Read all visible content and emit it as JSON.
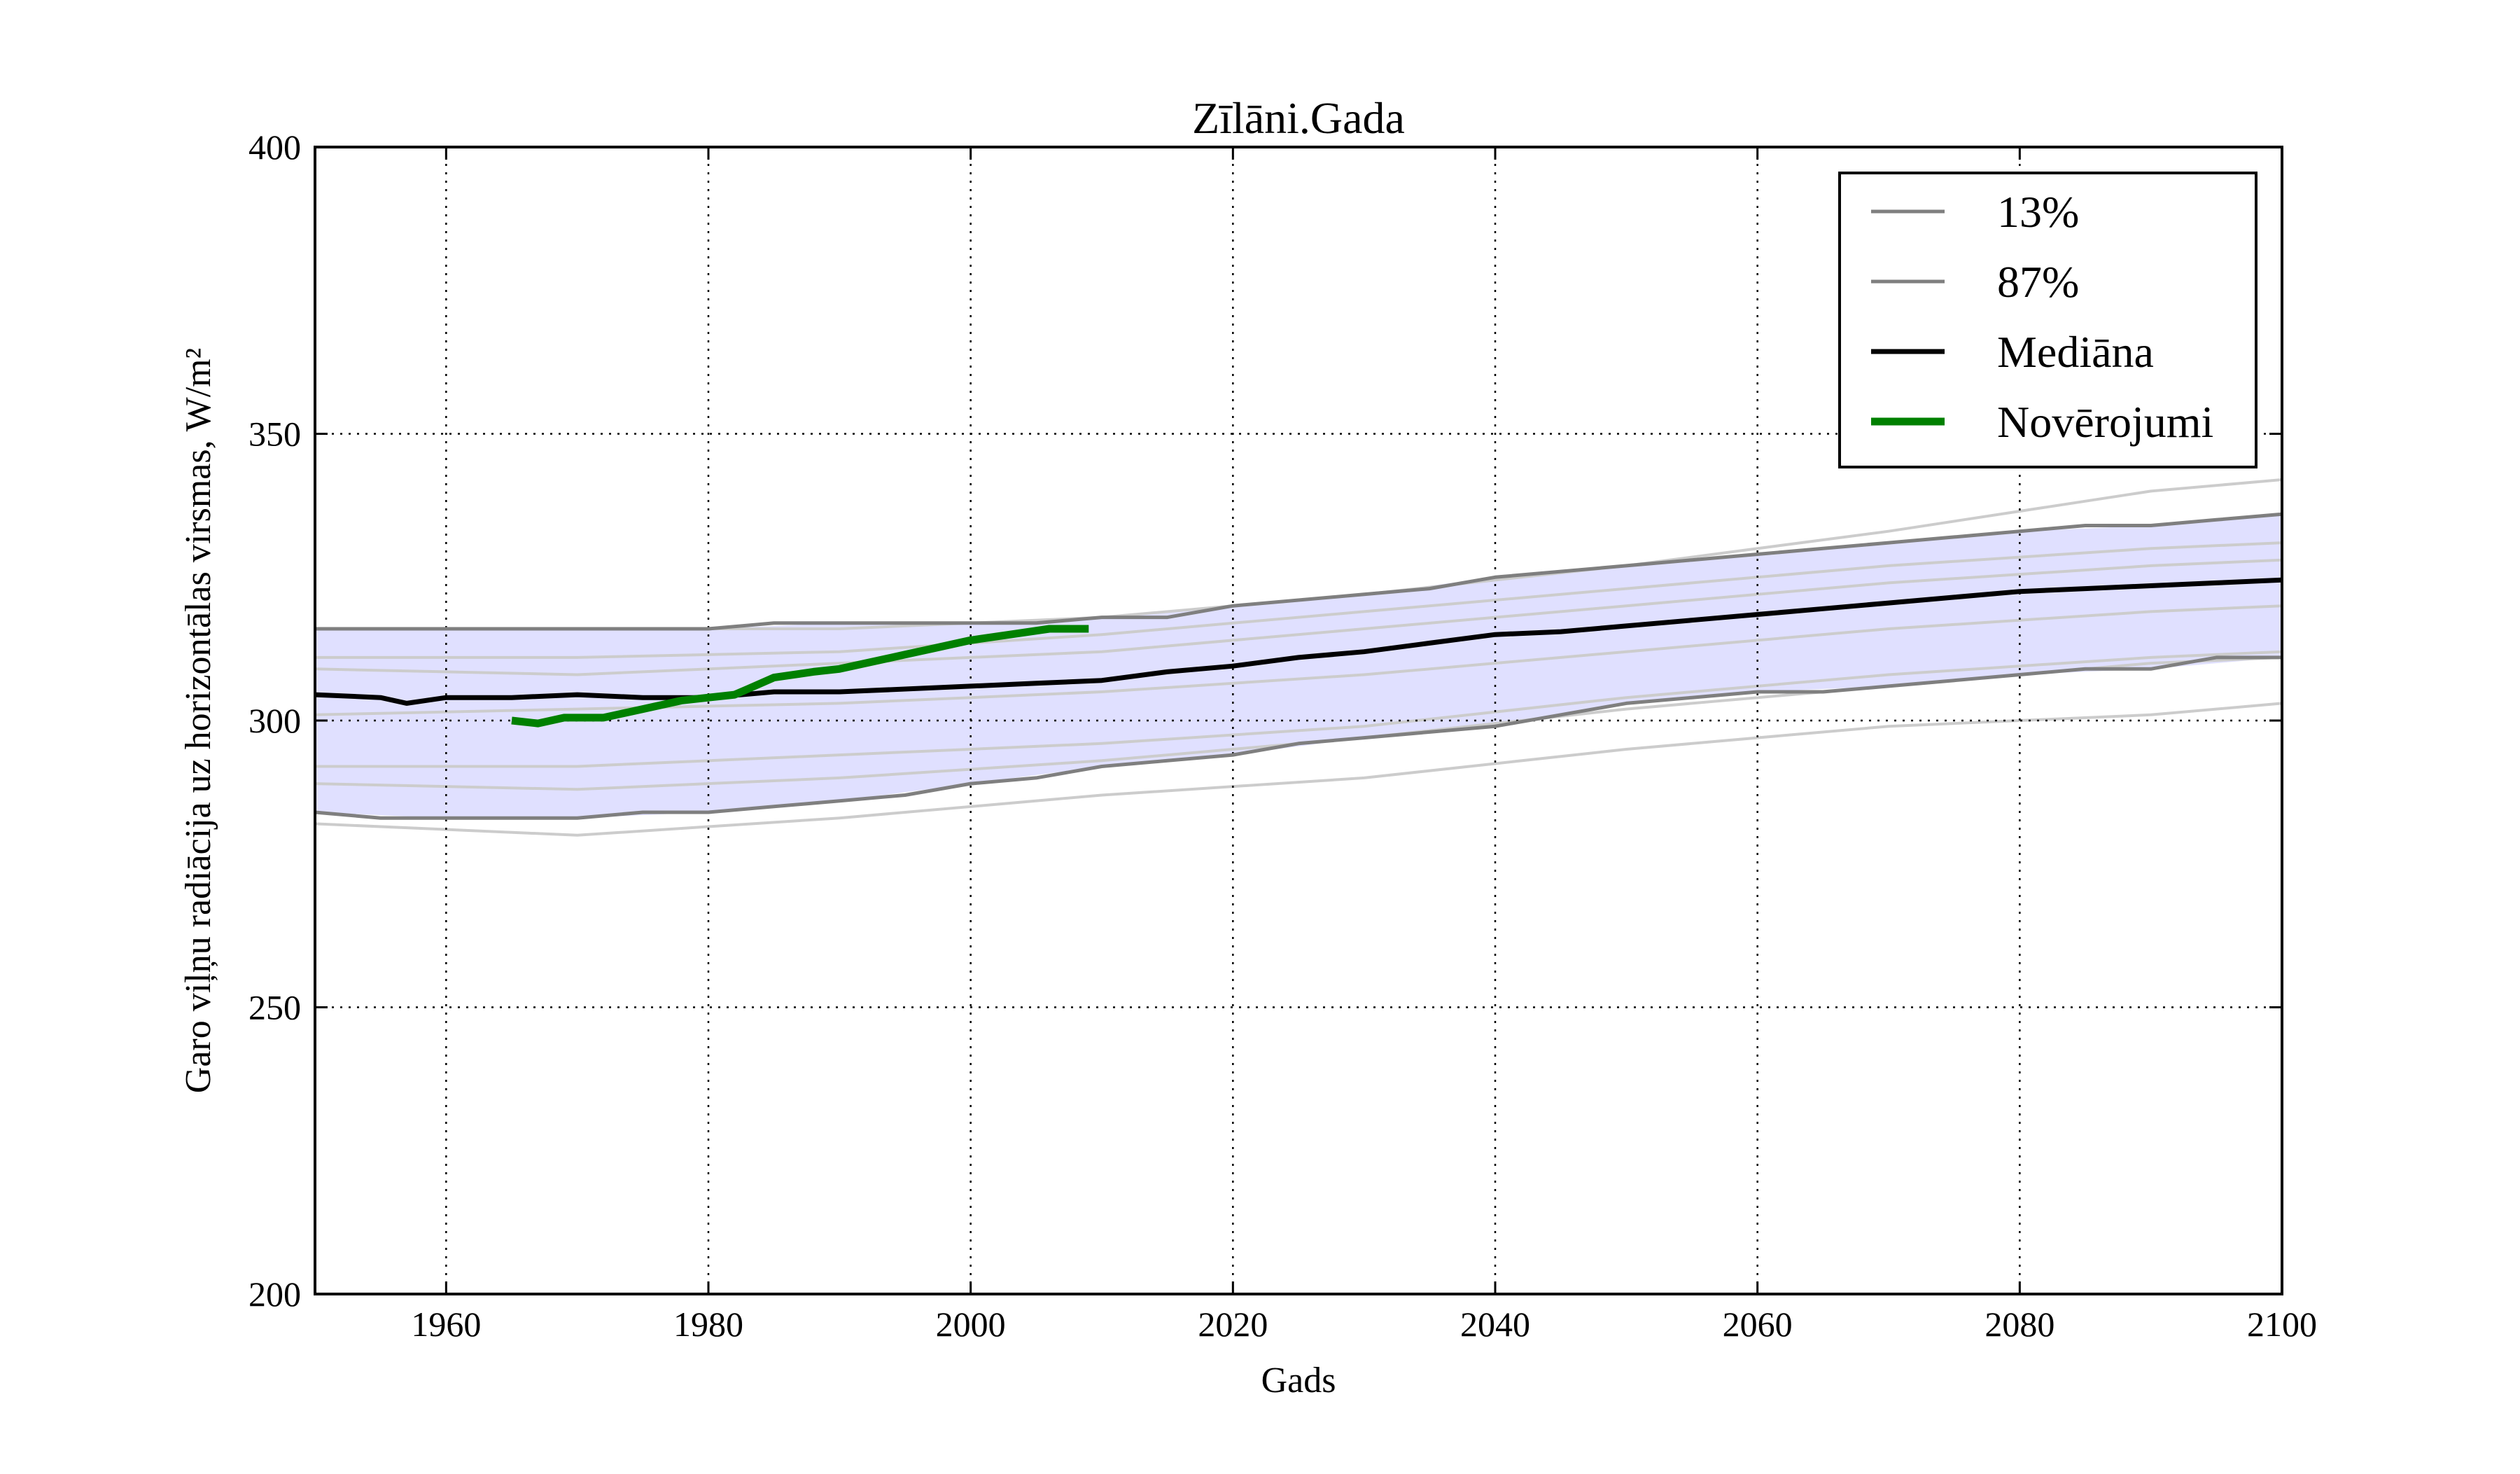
{
  "chart_data": {
    "type": "line",
    "title": "Zīlāni.Gada",
    "xlabel": "Gads",
    "ylabel": "Garo viļņu radiācija uz horizontālas virsmas, W/m²",
    "xlim": [
      1950,
      2100
    ],
    "ylim": [
      200,
      400
    ],
    "xticks": [
      1960,
      1980,
      2000,
      2020,
      2040,
      2060,
      2080,
      2100
    ],
    "yticks": [
      200,
      250,
      300,
      350,
      400
    ],
    "grid": true,
    "legend_position": "top-right",
    "colors": {
      "band_fill": "#e0e0ff",
      "band_edge": "#7f7f7f",
      "ensemble": "#cccccc",
      "median": "#000000",
      "observations": "#008000"
    },
    "band": {
      "x": [
        1950,
        1960,
        1970,
        1980,
        1990,
        2000,
        2010,
        2020,
        2030,
        2040,
        2050,
        2060,
        2070,
        2080,
        2090,
        2100
      ],
      "lower": [
        284,
        283,
        283,
        284,
        286,
        289,
        292,
        294,
        297,
        299,
        303,
        305,
        306,
        308,
        309,
        311
      ],
      "upper": [
        316,
        316,
        316,
        316,
        317,
        317,
        318,
        320,
        322,
        325,
        327,
        329,
        331,
        333,
        334,
        336
      ]
    },
    "ensemble": [
      {
        "x": [
          1950,
          1970,
          1990,
          2010,
          2030,
          2050,
          2070,
          2090,
          2100
        ],
        "values": [
          282,
          280,
          283,
          287,
          290,
          295,
          299,
          301,
          303
        ]
      },
      {
        "x": [
          1950,
          1970,
          1990,
          2010,
          2030,
          2050,
          2070,
          2090,
          2100
        ],
        "values": [
          292,
          292,
          294,
          296,
          299,
          304,
          308,
          311,
          312
        ]
      },
      {
        "x": [
          1950,
          1970,
          1990,
          2010,
          2030,
          2050,
          2070,
          2090,
          2100
        ],
        "values": [
          289,
          288,
          290,
          293,
          297,
          302,
          306,
          310,
          311
        ]
      },
      {
        "x": [
          1950,
          1970,
          1990,
          2010,
          2030,
          2050,
          2070,
          2090,
          2100
        ],
        "values": [
          301,
          302,
          303,
          305,
          308,
          312,
          316,
          319,
          320
        ]
      },
      {
        "x": [
          1950,
          1970,
          1990,
          2010,
          2030,
          2050,
          2070,
          2090,
          2100
        ],
        "values": [
          309,
          308,
          310,
          312,
          316,
          320,
          324,
          327,
          328
        ]
      },
      {
        "x": [
          1950,
          1970,
          1990,
          2010,
          2030,
          2050,
          2070,
          2090,
          2100
        ],
        "values": [
          311,
          311,
          312,
          315,
          319,
          323,
          327,
          330,
          331
        ]
      },
      {
        "x": [
          1950,
          1970,
          1990,
          2010,
          2030,
          2050,
          2070,
          2090,
          2100
        ],
        "values": [
          316,
          316,
          316,
          318,
          322,
          327,
          333,
          340,
          342
        ]
      }
    ],
    "series": [
      {
        "name": "13%",
        "x": [
          1950,
          1955,
          1960,
          1965,
          1970,
          1975,
          1980,
          1985,
          1990,
          1995,
          2000,
          2005,
          2010,
          2015,
          2020,
          2025,
          2030,
          2035,
          2040,
          2045,
          2050,
          2055,
          2060,
          2065,
          2070,
          2075,
          2080,
          2085,
          2090,
          2095,
          2100
        ],
        "values": [
          284,
          283,
          283,
          283,
          283,
          284,
          284,
          285,
          286,
          287,
          289,
          290,
          292,
          293,
          294,
          296,
          297,
          298,
          299,
          301,
          303,
          304,
          305,
          305,
          306,
          307,
          308,
          309,
          309,
          311,
          311
        ]
      },
      {
        "name": "87%",
        "x": [
          1950,
          1955,
          1960,
          1965,
          1970,
          1975,
          1980,
          1985,
          1990,
          1995,
          2000,
          2005,
          2010,
          2015,
          2020,
          2025,
          2030,
          2035,
          2040,
          2045,
          2050,
          2055,
          2060,
          2065,
          2070,
          2075,
          2080,
          2085,
          2090,
          2095,
          2100
        ],
        "values": [
          316,
          316,
          316,
          316,
          316,
          316,
          316,
          317,
          317,
          317,
          317,
          317,
          318,
          318,
          320,
          321,
          322,
          323,
          325,
          326,
          327,
          328,
          329,
          330,
          331,
          332,
          333,
          334,
          334,
          335,
          336
        ]
      },
      {
        "name": "Mediāna",
        "x": [
          1950,
          1955,
          1957,
          1960,
          1965,
          1970,
          1975,
          1980,
          1985,
          1990,
          1995,
          2000,
          2005,
          2010,
          2015,
          2020,
          2025,
          2030,
          2035,
          2040,
          2045,
          2050,
          2055,
          2060,
          2065,
          2070,
          2075,
          2080,
          2085,
          2090,
          2095,
          2100
        ],
        "values": [
          304.5,
          304,
          303,
          304,
          304,
          304.5,
          304,
          304,
          305,
          305,
          305.5,
          306,
          306.5,
          307,
          308.5,
          309.5,
          311,
          312,
          313.5,
          315,
          315.5,
          316.5,
          317.5,
          318.5,
          319.5,
          320.5,
          321.5,
          322.5,
          323,
          323.5,
          324,
          324.5
        ]
      },
      {
        "name": "Novērojumi",
        "x": [
          1965,
          1967,
          1969,
          1972,
          1975,
          1978,
          1980,
          1982,
          1983,
          1985,
          1988,
          1990,
          1993,
          1995,
          1997,
          1999,
          2000,
          2003,
          2006,
          2009
        ],
        "values": [
          300,
          299.5,
          300.5,
          300.5,
          302,
          303.5,
          304,
          304.5,
          305.5,
          307.5,
          308.5,
          309,
          310.5,
          311.5,
          312.5,
          313.5,
          314,
          315,
          316,
          316
        ]
      }
    ]
  }
}
